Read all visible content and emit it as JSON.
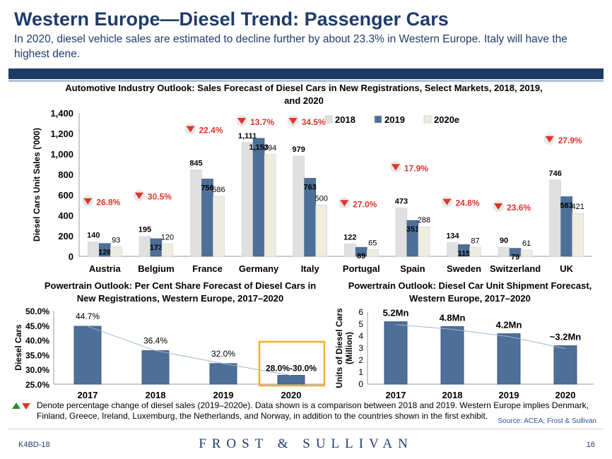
{
  "header": {
    "title": "Western Europe—Diesel Trend: Passenger Cars",
    "subtitle": "In 2020, diesel vehicle sales are estimated to decline further by about 23.3% in Western Europe. Italy will have the highest dene."
  },
  "colors": {
    "bar2018": "#e0e0e0",
    "bar2019": "#4e6f98",
    "bar2020": "#efece0",
    "accent": "#1f3c6a",
    "change": "#e0342c",
    "highlight": "#f0b323"
  },
  "chart_data": [
    {
      "type": "bar",
      "title": "Automotive Industry Outlook: Sales Forecast of Diesel Cars in New Registrations, Select Markets, 2018, 2019, and 2020",
      "ylabel": "Diesel Cars Unit Sales ('000)",
      "ylim": [
        0,
        1400
      ],
      "yticks": [
        "0",
        "200",
        "400",
        "600",
        "800",
        "1,000",
        "1,200",
        "1,400"
      ],
      "categories": [
        "Austria",
        "Belgium",
        "France",
        "Germany",
        "Italy",
        "Portugal",
        "Spain",
        "Sweden",
        "Switzerland",
        "UK"
      ],
      "series": [
        {
          "name": "2018",
          "values": [
            140,
            195,
            845,
            1111,
            979,
            122,
            473,
            134,
            90,
            746
          ],
          "labels": [
            "140",
            "195",
            "845",
            "1,111",
            "979",
            "122",
            "473",
            "134",
            "90",
            "746"
          ]
        },
        {
          "name": "2019",
          "values": [
            126,
            173,
            756,
            1153,
            763,
            89,
            351,
            115,
            79,
            583
          ],
          "labels": [
            "126",
            "173",
            "756",
            "1,153",
            "763",
            "89",
            "351",
            "115",
            "79",
            "583"
          ]
        },
        {
          "name": "2020e",
          "values": [
            93,
            120,
            586,
            994,
            500,
            65,
            288,
            87,
            61,
            421
          ],
          "labels": [
            "93",
            "120",
            "586",
            "994",
            "500",
            "65",
            "288",
            "87",
            "61",
            "421"
          ]
        }
      ],
      "changes": [
        "26.8%",
        "30.5%",
        "22.4%",
        "13.7%",
        "34.5%",
        "27.0%",
        "17.9%",
        "24.8%",
        "23.6%",
        "27.9%"
      ],
      "legend": "top-right"
    },
    {
      "type": "bar",
      "title": "Powertrain Outlook: Per Cent Share Forecast of Diesel Cars in New Registrations, Western Europe, 2017–2020",
      "ylabel": "Diesel Cars",
      "ylim": [
        25,
        50
      ],
      "yticks": [
        "25.0%",
        "30.0%",
        "35.0%",
        "40.0%",
        "45.0%",
        "50.0%"
      ],
      "categories": [
        "2017",
        "2018",
        "2019",
        "2020"
      ],
      "values": [
        44.7,
        36.4,
        32.0,
        28.0
      ],
      "labels": [
        "44.7%",
        "36.4%",
        "32.0%",
        "28.0%-30.0%"
      ]
    },
    {
      "type": "bar",
      "title": "Powertrain Outlook: Diesel Car Unit Shipment Forecast, Western Europe, 2017–2020",
      "ylabel": "Units of Diesel Cars (Million)",
      "ylim": [
        0,
        6
      ],
      "yticks": [
        "0",
        "1",
        "2",
        "3",
        "4",
        "5",
        "6"
      ],
      "categories": [
        "2017",
        "2018",
        "2019",
        "2020"
      ],
      "values": [
        5.2,
        4.8,
        4.2,
        3.2
      ],
      "labels": [
        "5.2Mn",
        "4.8Mn",
        "4.2Mn",
        "~3.2Mn"
      ]
    }
  ],
  "footnote": "Denote percentage change of diesel sales (2019–2020e). Data shown is a comparison between 2018 and 2019. Western Europe implies Denmark, Finland, Greece, Ireland, Luxemburg, the Netherlands, and Norway, in addition to the countries shown in the first exhibit.",
  "source": "Source: ACEA; Frost & Sullivan",
  "footer": {
    "code": "K4BD-18",
    "brand": "FROST & SULLIVAN",
    "page": "16"
  }
}
